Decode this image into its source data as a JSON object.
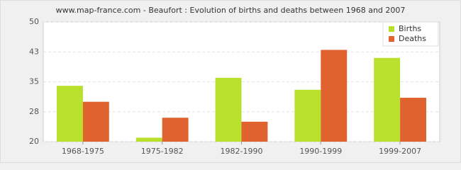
{
  "chart_data": {
    "type": "bar",
    "title": "www.map-france.com - Beaufort : Evolution of births and deaths between 1968 and 2007",
    "categories": [
      "1968-1975",
      "1975-1982",
      "1982-1990",
      "1990-1999",
      "1999-2007"
    ],
    "series": [
      {
        "name": "Births",
        "color": "#b8e02c",
        "values": [
          34,
          21,
          36,
          33,
          41
        ]
      },
      {
        "name": "Deaths",
        "color": "#e0622e",
        "values": [
          30,
          26,
          25,
          43,
          31
        ]
      }
    ],
    "ylim": [
      20,
      50
    ],
    "yticks": [
      20,
      {
        "value": 27.5,
        "label": "28"
      },
      35,
      {
        "value": 42.5,
        "label": "43"
      },
      50
    ],
    "grid": true,
    "legend": "top-right"
  }
}
